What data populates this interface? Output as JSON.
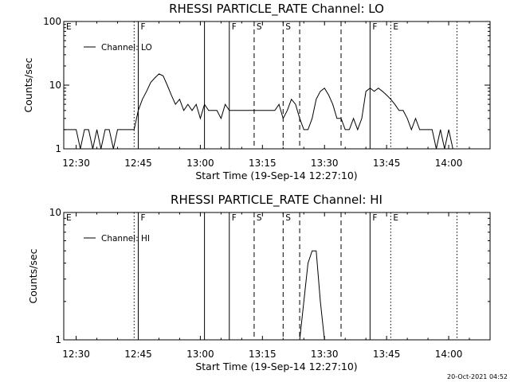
{
  "timestamp": "20-Oct-2021 04:52",
  "chart_data": [
    {
      "type": "line",
      "title": "RHESSI PARTICLE_RATE Channel: LO",
      "xlabel": "Start Time (19-Sep-14 12:27:10)",
      "ylabel": "Counts/sec",
      "yscale": "log",
      "xlim": [
        "12:27",
        "14:10"
      ],
      "ylim": [
        1,
        100
      ],
      "x_ticks": [
        "12:30",
        "12:45",
        "13:00",
        "13:15",
        "13:30",
        "13:45",
        "14:00"
      ],
      "y_ticks": [
        "1",
        "10",
        "100"
      ],
      "grid": false,
      "legend_position": "top-left",
      "series": [
        {
          "name": "Channel: LO",
          "x": [
            "12:27",
            "12:28",
            "12:29",
            "12:30",
            "12:31",
            "12:32",
            "12:33",
            "12:34",
            "12:35",
            "12:36",
            "12:37",
            "12:38",
            "12:39",
            "12:40",
            "12:41",
            "12:42",
            "12:43",
            "12:44",
            "12:45",
            "12:46",
            "12:47",
            "12:48",
            "12:49",
            "12:50",
            "12:51",
            "12:52",
            "12:53",
            "12:54",
            "12:55",
            "12:56",
            "12:57",
            "12:58",
            "12:59",
            "13:00",
            "13:01",
            "13:02",
            "13:03",
            "13:04",
            "13:05",
            "13:06",
            "13:07",
            "13:08",
            "13:09",
            "13:10",
            "13:11",
            "13:12",
            "13:13",
            "13:14",
            "13:15",
            "13:16",
            "13:17",
            "13:18",
            "13:19",
            "13:20",
            "13:21",
            "13:22",
            "13:23",
            "13:24",
            "13:25",
            "13:26",
            "13:27",
            "13:28",
            "13:29",
            "13:30",
            "13:31",
            "13:32",
            "13:33",
            "13:34",
            "13:35",
            "13:36",
            "13:37",
            "13:38",
            "13:39",
            "13:40",
            "13:41",
            "13:42",
            "13:43",
            "13:44",
            "13:45",
            "13:46",
            "13:47",
            "13:48",
            "13:49",
            "13:50",
            "13:51",
            "13:52",
            "13:53",
            "13:54",
            "13:55",
            "13:56",
            "13:57",
            "13:58",
            "13:59",
            "14:00",
            "14:01",
            "14:02"
          ],
          "y": [
            2,
            2,
            2,
            2,
            1,
            2,
            2,
            1,
            2,
            1,
            2,
            2,
            1,
            2,
            2,
            2,
            2,
            2,
            4,
            6,
            8,
            11,
            13,
            15,
            14,
            10,
            7,
            5,
            6,
            4,
            5,
            4,
            5,
            3,
            5,
            4,
            4,
            4,
            3,
            5,
            4,
            4,
            4,
            4,
            4,
            4,
            4,
            4,
            4,
            4,
            4,
            4,
            5,
            3,
            4,
            6,
            5,
            3,
            2,
            2,
            3,
            6,
            8,
            9,
            7,
            5,
            3,
            3,
            2,
            2,
            3,
            2,
            3,
            8,
            9,
            8,
            9,
            8,
            7,
            6,
            5,
            4,
            4,
            3,
            2,
            3,
            2,
            2,
            2,
            2,
            1,
            2,
            1,
            2,
            1,
            1
          ]
        }
      ],
      "markers": {
        "solid": [
          "12:45",
          "13:01",
          "13:07",
          "13:41"
        ],
        "dashed": [
          "13:13",
          "13:20",
          "13:24",
          "13:34"
        ],
        "dotted": [
          "12:44",
          "13:46",
          "14:02"
        ]
      },
      "marker_labels": [
        {
          "text": "E",
          "at": "12:27"
        },
        {
          "text": "F",
          "at": "12:45"
        },
        {
          "text": "F",
          "at": "13:07"
        },
        {
          "text": "S",
          "at": "13:13"
        },
        {
          "text": "S",
          "at": "13:20"
        },
        {
          "text": "F",
          "at": "13:41"
        },
        {
          "text": "E",
          "at": "13:46"
        }
      ]
    },
    {
      "type": "line",
      "title": "RHESSI PARTICLE_RATE Channel: HI",
      "xlabel": "Start Time (19-Sep-14 12:27:10)",
      "ylabel": "Counts/sec",
      "yscale": "log",
      "xlim": [
        "12:27",
        "14:10"
      ],
      "ylim": [
        1,
        10
      ],
      "x_ticks": [
        "12:30",
        "12:45",
        "13:00",
        "13:15",
        "13:30",
        "13:45",
        "14:00"
      ],
      "y_ticks": [
        "1",
        "10"
      ],
      "grid": false,
      "legend_position": "top-left",
      "series": [
        {
          "name": "Channel: HI",
          "x": [
            "13:23",
            "13:24",
            "13:25",
            "13:26",
            "13:27",
            "13:28",
            "13:29",
            "13:30"
          ],
          "y": [
            1,
            1,
            2,
            4,
            5,
            5,
            2,
            1
          ]
        }
      ],
      "markers": {
        "solid": [
          "12:45",
          "13:01",
          "13:07",
          "13:41"
        ],
        "dashed": [
          "13:13",
          "13:20",
          "13:24",
          "13:34"
        ],
        "dotted": [
          "12:44",
          "13:46",
          "14:02"
        ]
      },
      "marker_labels": [
        {
          "text": "E",
          "at": "12:27"
        },
        {
          "text": "F",
          "at": "12:45"
        },
        {
          "text": "F",
          "at": "13:07"
        },
        {
          "text": "S",
          "at": "13:13"
        },
        {
          "text": "S",
          "at": "13:20"
        },
        {
          "text": "F",
          "at": "13:41"
        },
        {
          "text": "E",
          "at": "13:46"
        }
      ]
    }
  ]
}
